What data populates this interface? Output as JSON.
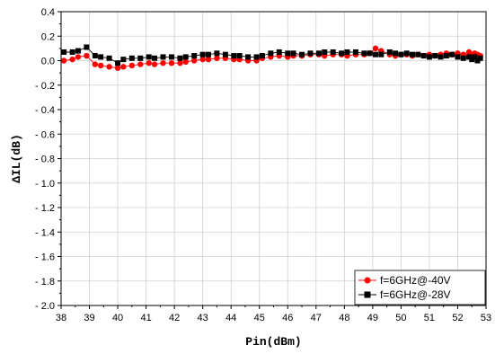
{
  "chart_data": {
    "type": "line",
    "xlabel": "Pin(dBm)",
    "ylabel": "ΔIL(dB)",
    "xlim": [
      38,
      53
    ],
    "ylim": [
      -2.0,
      0.4
    ],
    "x_ticks": [
      "38",
      "39",
      "40",
      "41",
      "42",
      "43",
      "44",
      "45",
      "46",
      "47",
      "48",
      "49",
      "50",
      "51",
      "52",
      "53"
    ],
    "y_ticks": [
      "0.4",
      "0.2",
      "0.0",
      "-0.2",
      "-0.4",
      "-0.6",
      "-0.8",
      "-1.0",
      "-1.2",
      "-1.4",
      "-1.6",
      "-1.8",
      "-2.0"
    ],
    "grid": true,
    "legend_position": "bottom-right",
    "series": [
      {
        "name": "f=6GHz@-40V",
        "color": "#ff0000",
        "marker": "circle",
        "points": [
          [
            38.1,
            0.0
          ],
          [
            38.4,
            0.01
          ],
          [
            38.6,
            0.03
          ],
          [
            38.9,
            0.04
          ],
          [
            39.2,
            -0.03
          ],
          [
            39.4,
            -0.04
          ],
          [
            39.7,
            -0.05
          ],
          [
            40.0,
            -0.06
          ],
          [
            40.2,
            -0.05
          ],
          [
            40.5,
            -0.04
          ],
          [
            40.8,
            -0.03
          ],
          [
            41.1,
            -0.02
          ],
          [
            41.3,
            -0.03
          ],
          [
            41.6,
            -0.02
          ],
          [
            41.9,
            -0.02
          ],
          [
            42.2,
            -0.02
          ],
          [
            42.4,
            -0.01
          ],
          [
            42.7,
            0.0
          ],
          [
            43.0,
            0.01
          ],
          [
            43.2,
            0.01
          ],
          [
            43.5,
            0.02
          ],
          [
            43.8,
            0.02
          ],
          [
            44.1,
            0.01
          ],
          [
            44.3,
            0.01
          ],
          [
            44.6,
            0.0
          ],
          [
            44.9,
            0.0
          ],
          [
            45.1,
            0.02
          ],
          [
            45.4,
            0.03
          ],
          [
            45.7,
            0.04
          ],
          [
            46.0,
            0.03
          ],
          [
            46.2,
            0.04
          ],
          [
            46.5,
            0.04
          ],
          [
            46.8,
            0.05
          ],
          [
            47.1,
            0.05
          ],
          [
            47.3,
            0.04
          ],
          [
            47.6,
            0.05
          ],
          [
            47.9,
            0.05
          ],
          [
            48.1,
            0.04
          ],
          [
            48.4,
            0.05
          ],
          [
            48.7,
            0.05
          ],
          [
            48.9,
            0.06
          ],
          [
            49.1,
            0.1
          ],
          [
            49.3,
            0.08
          ],
          [
            49.6,
            0.05
          ],
          [
            49.8,
            0.04
          ],
          [
            50.0,
            0.05
          ],
          [
            50.2,
            0.05
          ],
          [
            50.4,
            0.04
          ],
          [
            50.6,
            0.05
          ],
          [
            50.8,
            0.04
          ],
          [
            51.0,
            0.05
          ],
          [
            51.2,
            0.04
          ],
          [
            51.4,
            0.05
          ],
          [
            51.6,
            0.06
          ],
          [
            51.8,
            0.05
          ],
          [
            52.0,
            0.06
          ],
          [
            52.2,
            0.05
          ],
          [
            52.4,
            0.07
          ],
          [
            52.5,
            0.05
          ],
          [
            52.6,
            0.06
          ],
          [
            52.7,
            0.05
          ],
          [
            52.8,
            0.04
          ]
        ]
      },
      {
        "name": "f=6GHz@-28V",
        "color": "#000000",
        "marker": "square",
        "points": [
          [
            38.1,
            0.07
          ],
          [
            38.4,
            0.07
          ],
          [
            38.6,
            0.08
          ],
          [
            38.9,
            0.11
          ],
          [
            39.2,
            0.04
          ],
          [
            39.4,
            0.03
          ],
          [
            39.7,
            0.02
          ],
          [
            40.0,
            -0.02
          ],
          [
            40.2,
            0.01
          ],
          [
            40.5,
            0.02
          ],
          [
            40.8,
            0.02
          ],
          [
            41.1,
            0.03
          ],
          [
            41.3,
            0.02
          ],
          [
            41.6,
            0.03
          ],
          [
            41.9,
            0.03
          ],
          [
            42.2,
            0.02
          ],
          [
            42.4,
            0.03
          ],
          [
            42.7,
            0.04
          ],
          [
            43.0,
            0.05
          ],
          [
            43.2,
            0.05
          ],
          [
            43.5,
            0.06
          ],
          [
            43.8,
            0.05
          ],
          [
            44.1,
            0.04
          ],
          [
            44.3,
            0.04
          ],
          [
            44.6,
            0.03
          ],
          [
            44.9,
            0.03
          ],
          [
            45.1,
            0.04
          ],
          [
            45.4,
            0.06
          ],
          [
            45.7,
            0.07
          ],
          [
            46.0,
            0.06
          ],
          [
            46.2,
            0.06
          ],
          [
            46.5,
            0.05
          ],
          [
            46.8,
            0.06
          ],
          [
            47.1,
            0.06
          ],
          [
            47.3,
            0.07
          ],
          [
            47.6,
            0.07
          ],
          [
            47.9,
            0.06
          ],
          [
            48.1,
            0.07
          ],
          [
            48.4,
            0.07
          ],
          [
            48.7,
            0.06
          ],
          [
            48.9,
            0.06
          ],
          [
            49.1,
            0.05
          ],
          [
            49.3,
            0.05
          ],
          [
            49.6,
            0.07
          ],
          [
            49.8,
            0.06
          ],
          [
            50.0,
            0.05
          ],
          [
            50.2,
            0.06
          ],
          [
            50.4,
            0.05
          ],
          [
            50.6,
            0.05
          ],
          [
            50.8,
            0.04
          ],
          [
            51.0,
            0.03
          ],
          [
            51.2,
            0.04
          ],
          [
            51.4,
            0.03
          ],
          [
            51.6,
            0.04
          ],
          [
            51.8,
            0.05
          ],
          [
            52.0,
            0.03
          ],
          [
            52.2,
            0.02
          ],
          [
            52.4,
            0.03
          ],
          [
            52.5,
            0.01
          ],
          [
            52.6,
            0.03
          ],
          [
            52.7,
            0.0
          ],
          [
            52.8,
            0.02
          ]
        ]
      }
    ]
  }
}
